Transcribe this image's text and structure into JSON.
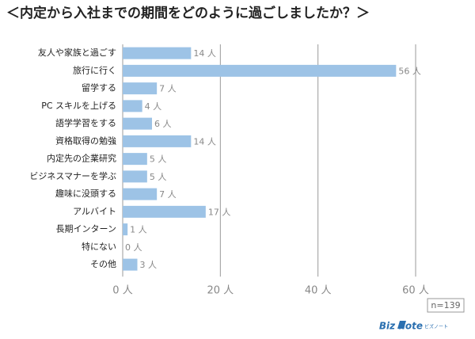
{
  "chart_data": {
    "type": "hbar",
    "title": "＜内定から入社までの期間をどのように過ごしましたか？＞",
    "categories": [
      "友人や家族と過ごす",
      "旅行に行く",
      "留学する",
      "PC スキルを上げる",
      "語学学習をする",
      "資格取得の勉強",
      "内定先の企業研究",
      "ビジネスマナーを学ぶ",
      "趣味に没頭する",
      "アルバイト",
      "長期インターン",
      "特にない",
      "その他"
    ],
    "values": [
      14,
      56,
      7,
      4,
      6,
      14,
      5,
      5,
      7,
      17,
      1,
      0,
      3
    ],
    "value_labels": [
      "14 人",
      "56 人",
      "7 人",
      "4 人",
      "6 人",
      "14 人",
      "5 人",
      "5 人",
      "7 人",
      "17 人",
      "1 人",
      "0 人",
      "3 人"
    ],
    "color": "#9dc3e6",
    "xlim": [
      0,
      60
    ],
    "xticks": [
      {
        "value": 0,
        "label": "0 人"
      },
      {
        "value": 20,
        "label": "20 人"
      },
      {
        "value": 40,
        "label": "40 人"
      },
      {
        "value": 60,
        "label": "60 人"
      }
    ],
    "grid": true,
    "annotation": "n=139",
    "logo": "Biz note",
    "logo_sub": "ビズノート"
  }
}
